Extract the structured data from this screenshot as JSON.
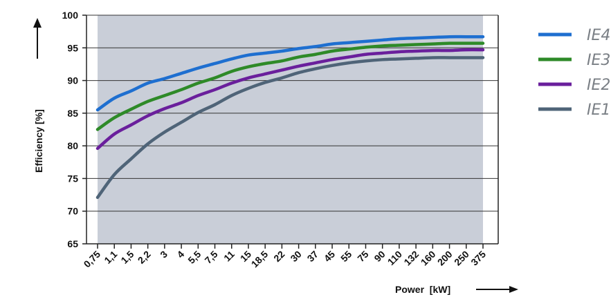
{
  "chart_data": {
    "type": "line",
    "title": "",
    "xlabel": "Power  [kW]",
    "ylabel": "Efficiency  [%]",
    "ylim": [
      65,
      100
    ],
    "yticks": [
      "65",
      "70",
      "75",
      "80",
      "85",
      "90",
      "95",
      "100"
    ],
    "categories": [
      "0,75",
      "1,1",
      "1,5",
      "2,2",
      "3",
      "4",
      "5,5",
      "7,5",
      "11",
      "15",
      "18,5",
      "22",
      "30",
      "37",
      "45",
      "55",
      "75",
      "90",
      "110",
      "132",
      "160",
      "200",
      "250",
      "375"
    ],
    "grid": true,
    "legend_position": "right",
    "colors": {
      "plot_background": "#c9ced8",
      "grid": "#333333"
    },
    "series": [
      {
        "name": "IE4",
        "color": "#1e6fd0",
        "values": [
          85.5,
          87.3,
          88.4,
          89.6,
          90.3,
          91.1,
          91.9,
          92.6,
          93.3,
          93.9,
          94.2,
          94.5,
          94.9,
          95.2,
          95.6,
          95.8,
          96.0,
          96.2,
          96.4,
          96.5,
          96.6,
          96.7,
          96.7,
          96.7
        ]
      },
      {
        "name": "IE3",
        "color": "#2e8a28",
        "values": [
          82.5,
          84.3,
          85.6,
          86.8,
          87.7,
          88.6,
          89.6,
          90.4,
          91.4,
          92.1,
          92.6,
          93.0,
          93.6,
          94.0,
          94.5,
          94.8,
          95.1,
          95.3,
          95.4,
          95.5,
          95.6,
          95.7,
          95.7,
          95.7
        ]
      },
      {
        "name": "IE2",
        "color": "#6a1f9c",
        "values": [
          79.6,
          81.8,
          83.2,
          84.6,
          85.7,
          86.6,
          87.7,
          88.6,
          89.6,
          90.4,
          91.0,
          91.6,
          92.2,
          92.7,
          93.2,
          93.6,
          94.0,
          94.2,
          94.4,
          94.5,
          94.6,
          94.6,
          94.7,
          94.7
        ]
      },
      {
        "name": "IE1",
        "color": "#4f6478",
        "values": [
          72.1,
          75.6,
          78.0,
          80.3,
          82.1,
          83.6,
          85.1,
          86.3,
          87.7,
          88.8,
          89.7,
          90.4,
          91.2,
          91.8,
          92.3,
          92.7,
          93.0,
          93.2,
          93.3,
          93.4,
          93.5,
          93.5,
          93.5,
          93.5
        ]
      }
    ]
  }
}
